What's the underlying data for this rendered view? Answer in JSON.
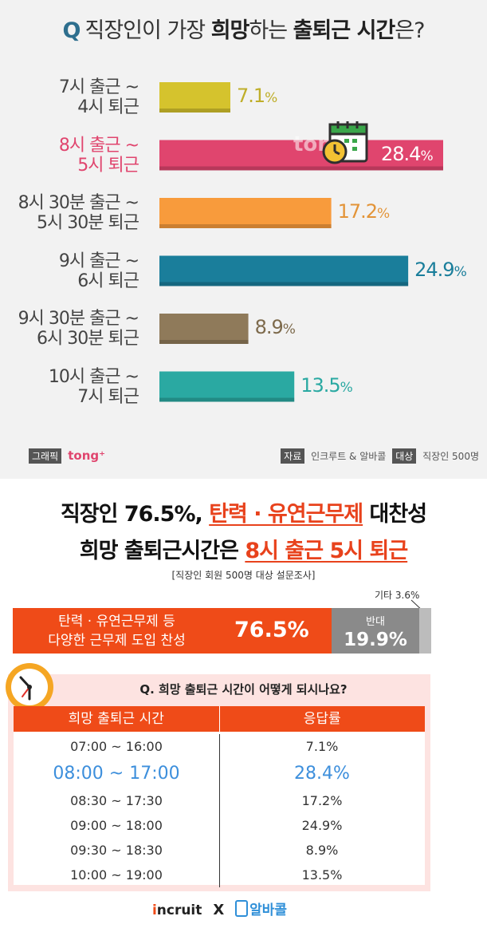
{
  "top_chart": {
    "title_q": "Q",
    "title_pre": "직장인이 가장 ",
    "title_b1": "희망",
    "title_mid": "하는 ",
    "title_b2": "출퇴근 시간",
    "title_post": "은?",
    "watermark": "tong⁺",
    "credit_tag": "그래픽",
    "credit_brand": "tong⁺",
    "source_tag": "자료",
    "source_text": "인크루트 & 알바콜",
    "target_tag": "대상",
    "target_text": "직장인 500명"
  },
  "chart_data": {
    "type": "bar",
    "orientation": "horizontal",
    "title": "직장인이 가장 희망하는 출퇴근 시간은?",
    "categories": [
      [
        "7시 출근 ~",
        "4시 퇴근"
      ],
      [
        "8시 출근 ~",
        "5시 퇴근"
      ],
      [
        "8시 30분 출근 ~",
        "5시 30분 퇴근"
      ],
      [
        "9시 출근 ~",
        "6시 퇴근"
      ],
      [
        "9시 30분 출근 ~",
        "6시 30분 퇴근"
      ],
      [
        "10시 출근 ~",
        "7시 퇴근"
      ]
    ],
    "values": [
      7.1,
      28.4,
      17.2,
      24.9,
      8.9,
      13.5
    ],
    "value_labels": [
      "7.1",
      "28.4",
      "17.2",
      "24.9",
      "8.9",
      "13.5"
    ],
    "unit": "%",
    "colors": [
      "#d5c32d",
      "#e0456e",
      "#f89b3c",
      "#1a7e9b",
      "#8f7a5a",
      "#2aa9a2"
    ],
    "label_colors": [
      "#bfae29",
      "#ffffff",
      "#e39438",
      "#1a7e9b",
      "#7d6a4c",
      "#2aa9a2"
    ],
    "highlight_index": 1,
    "xlim": [
      0,
      28.4
    ]
  },
  "headline": {
    "line1_pre": "직장인 76.5%, ",
    "line1_red": "탄력 · 유연근무제",
    "line1_post": " 대찬성",
    "line2_pre": "희망 출퇴근시간은 ",
    "line2_red": "8시 출근 5시 퇴근",
    "subnote": "[직장인 회원 500명 대상 설문조사]"
  },
  "agree_bar": {
    "etc_label": "기타 3.6%",
    "yes_text_1": "탄력 · 유연근무제 등",
    "yes_text_2": "다양한 근무제 도입 찬성",
    "yes_value": "76.5%",
    "no_label": "반대",
    "no_value": "19.9%",
    "yes_color": "#ef4b18",
    "no_color": "#8a8a8a"
  },
  "table": {
    "question": "Q. 희망 출퇴근 시간이 어떻게 되시나요?",
    "col1": "희망 출퇴근 시간",
    "col2": "응답률",
    "rows": [
      {
        "time": "07:00 ~ 16:00",
        "rate": "7.1%"
      },
      {
        "time": "08:00 ~ 17:00",
        "rate": "28.4%"
      },
      {
        "time": "08:30 ~ 17:30",
        "rate": "17.2%"
      },
      {
        "time": "09:00 ~ 18:00",
        "rate": "24.9%"
      },
      {
        "time": "09:30 ~ 18:30",
        "rate": "8.9%"
      },
      {
        "time": "10:00 ~ 19:00",
        "rate": "13.5%"
      }
    ]
  },
  "footer": {
    "incruit_dot": "i",
    "incruit": "ncruit",
    "x": "X",
    "albacall": "알바콜"
  }
}
